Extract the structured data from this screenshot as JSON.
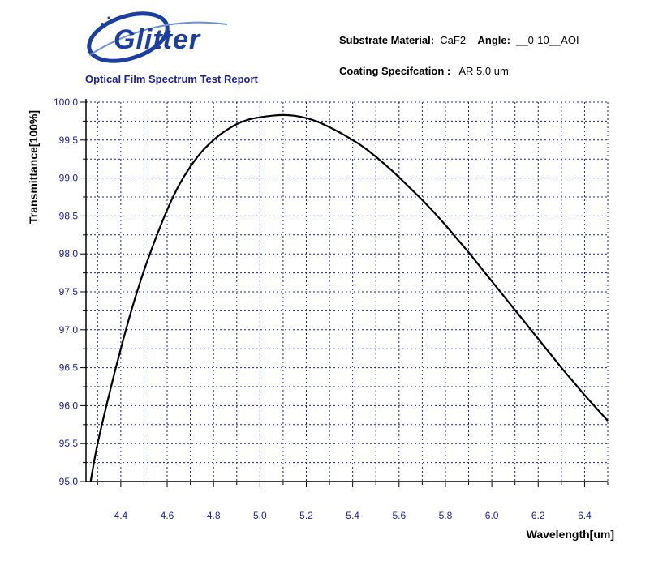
{
  "logo": {
    "text": "Glitter"
  },
  "report_title": "Optical Film Spectrum Test Report",
  "substrate": {
    "label": "Substrate Material:",
    "value": "CaF2"
  },
  "angle": {
    "label": "Angle:",
    "value": "__0-10__AOI"
  },
  "coating": {
    "label": "Coating Specifcation :",
    "value": "AR 5.0 um"
  },
  "colors": {
    "grid": "#1b1fa0",
    "tick_labels": "#1b1fa0",
    "curve": "#000000",
    "title": "#1b1fa0"
  },
  "chart_data": {
    "type": "line",
    "xlabel": "Wavelength[um]",
    "ylabel": "Transmittance[100%]",
    "xlim": [
      4.25,
      6.5
    ],
    "ylim": [
      95.0,
      100.0
    ],
    "grid": true,
    "x_ticks": [
      4.4,
      4.6,
      4.8,
      5.0,
      5.2,
      5.4,
      5.6,
      5.8,
      6.0,
      6.2,
      6.4
    ],
    "x_tick_labels": [
      "4.4",
      "4.6",
      "4.8",
      "5.0",
      "5.2",
      "5.4",
      "5.6",
      "5.8",
      "6.0",
      "6.2",
      "6.4"
    ],
    "y_ticks": [
      95.0,
      95.5,
      96.0,
      96.5,
      97.0,
      97.5,
      98.0,
      98.5,
      99.0,
      99.5,
      100.0
    ],
    "y_tick_labels": [
      "95.0",
      "95.5",
      "96.0",
      "96.5",
      "97.0",
      "97.5",
      "98.0",
      "98.5",
      "99.0",
      "99.5",
      "100.0"
    ],
    "series": [
      {
        "x": [
          4.27,
          4.3,
          4.35,
          4.4,
          4.45,
          4.5,
          4.55,
          4.6,
          4.65,
          4.7,
          4.75,
          4.8,
          4.85,
          4.9,
          4.95,
          5.0,
          5.05,
          5.1,
          5.15,
          5.2,
          5.25,
          5.3,
          5.35,
          5.4,
          5.45,
          5.5,
          5.55,
          5.6,
          5.65,
          5.7,
          5.75,
          5.8,
          5.85,
          5.9,
          5.95,
          6.0,
          6.05,
          6.1,
          6.15,
          6.2,
          6.25,
          6.3,
          6.35,
          6.4,
          6.45,
          6.5
        ],
        "y": [
          95.0,
          95.5,
          96.15,
          96.75,
          97.3,
          97.78,
          98.2,
          98.58,
          98.9,
          99.15,
          99.35,
          99.5,
          99.62,
          99.71,
          99.77,
          99.8,
          99.82,
          99.83,
          99.82,
          99.79,
          99.74,
          99.67,
          99.59,
          99.5,
          99.4,
          99.28,
          99.15,
          99.01,
          98.86,
          98.71,
          98.55,
          98.38,
          98.2,
          98.02,
          97.83,
          97.64,
          97.45,
          97.26,
          97.07,
          96.88,
          96.69,
          96.5,
          96.32,
          96.14,
          95.97,
          95.8
        ]
      }
    ]
  }
}
